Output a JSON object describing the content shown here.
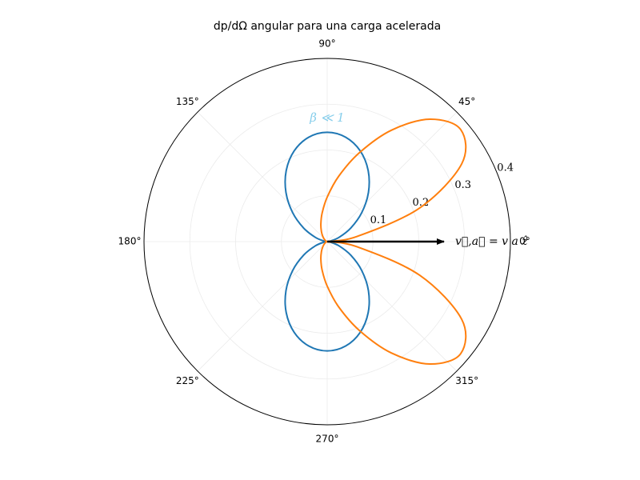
{
  "chart_data": {
    "type": "polar",
    "title": "dp/dΩ angular para una carga acelerada",
    "theta": [
      0,
      10,
      20,
      30,
      40,
      50,
      60,
      70,
      80,
      90,
      100,
      110,
      120,
      130,
      140,
      150,
      160,
      170,
      180,
      190,
      200,
      210,
      220,
      230,
      240,
      250,
      260,
      270,
      280,
      290,
      300,
      310,
      320,
      330,
      340,
      350,
      360
    ],
    "series": [
      {
        "color": "#1f77b4",
        "values": [
          0,
          0.0072,
          0.0279,
          0.0597,
          0.0986,
          0.1401,
          0.179,
          0.2108,
          0.2315,
          0.2387,
          0.2315,
          0.2108,
          0.179,
          0.1401,
          0.0986,
          0.0597,
          0.0279,
          0.0072,
          0,
          0.0072,
          0.0279,
          0.0597,
          0.0986,
          0.1401,
          0.179,
          0.2108,
          0.2315,
          0.2387,
          0.2315,
          0.2108,
          0.179,
          0.1401,
          0.0986,
          0.0597,
          0.0279,
          0.0072,
          0
        ]
      },
      {
        "color": "#ff7f0e",
        "values": [
          0,
          0.0675,
          0.215,
          0.339,
          0.3805,
          0.349,
          0.281,
          0.207,
          0.145,
          0.0972,
          0.0635,
          0.0405,
          0.0252,
          0.0151,
          0.0086,
          0.0044,
          0.0018,
          0.0004,
          0,
          0.0004,
          0.0018,
          0.0044,
          0.0086,
          0.0151,
          0.0252,
          0.0405,
          0.0635,
          0.0972,
          0.145,
          0.207,
          0.281,
          0.349,
          0.3805,
          0.339,
          0.215,
          0.0675,
          0
        ]
      }
    ],
    "rlim": [
      0,
      0.4
    ],
    "rticks": [
      0.1,
      0.2,
      0.3,
      0.4
    ],
    "thetaticks": [
      {
        "value": 0,
        "label": "0°"
      },
      {
        "value": 45,
        "label": "45°"
      },
      {
        "value": 90,
        "label": "90°"
      },
      {
        "value": 135,
        "label": "135°"
      },
      {
        "value": 180,
        "label": "180°"
      },
      {
        "value": 225,
        "label": "225°"
      },
      {
        "value": 270,
        "label": "270°"
      },
      {
        "value": 315,
        "label": "315°"
      }
    ],
    "grid": true,
    "annotation": {
      "text": "β ≪ 1",
      "color": "#87ceeb"
    },
    "arrow": {
      "theta": 0,
      "r": 0.255,
      "label": "v⃗,a⃗ = v a ẑ",
      "color": "#000000"
    }
  }
}
